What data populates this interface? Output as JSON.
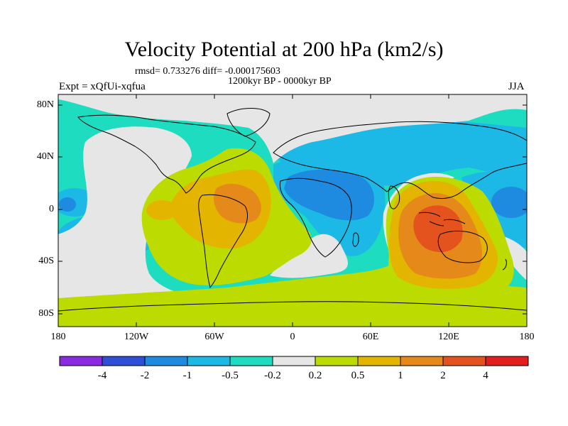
{
  "title": "Velocity Potential at 200 hPa (km2/s)",
  "stats": "rmsd= 0.733276 diff= -0.000175603",
  "period": "1200kyr BP - 0000kyr BP",
  "experiment": "Expt = xQfUi-xqfua",
  "season": "JJA",
  "lat_ticks": [
    "80N",
    "40N",
    "0",
    "40S",
    "80S"
  ],
  "lon_ticks": [
    "180",
    "120W",
    "60W",
    "0",
    "60E",
    "120E",
    "180"
  ],
  "colorbar": {
    "colors": [
      "#8a2be2",
      "#2f4fd8",
      "#1e8ae0",
      "#1cb8e6",
      "#1ddcc0",
      "#e6e6e6",
      "#bcdb00",
      "#e3b400",
      "#e58a1a",
      "#e4531d",
      "#e21e1e"
    ],
    "labels": [
      "-4",
      "-2",
      "-1",
      "-0.5",
      "-0.2",
      "0.2",
      "0.5",
      "1",
      "2",
      "4"
    ]
  },
  "map_colors": {
    "teal": "#1ddcc0",
    "cyan": "#1cb8e6",
    "blue": "#1e8ae0",
    "grey": "#e6e6e6",
    "lime": "#bcdb00",
    "gold": "#e3b400",
    "orange": "#e58a1a",
    "red_orange": "#e4531d"
  }
}
